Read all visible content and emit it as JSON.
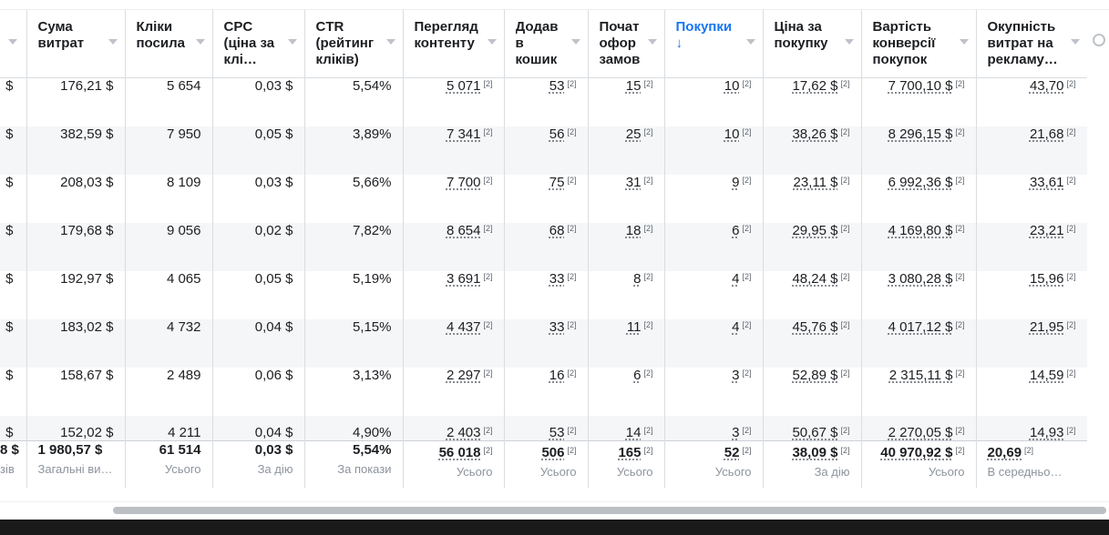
{
  "columns": [
    {
      "label": ""
    },
    {
      "label": "Сума витрат"
    },
    {
      "label": "Кліки посила"
    },
    {
      "label": "CPC (ціна за клі…"
    },
    {
      "label": "CTR (рейтинг кліків)"
    },
    {
      "label": "Перегляд контенту"
    },
    {
      "label": "Додав в кошик"
    },
    {
      "label": "Почат офор замов"
    },
    {
      "label": "Покупки ↓"
    },
    {
      "label": "Ціна за покупку"
    },
    {
      "label": "Вартість конверсії покупок"
    },
    {
      "label": "Окупність витрат на рекламу…"
    }
  ],
  "footnote_mark": "[2]",
  "rows": [
    [
      "$",
      "176,21 $",
      "5 654",
      "0,03 $",
      "5,54%",
      "5 071",
      "53",
      "15",
      "10",
      "17,62 $",
      "7 700,10 $",
      "43,70"
    ],
    [
      "$",
      "382,59 $",
      "7 950",
      "0,05 $",
      "3,89%",
      "7 341",
      "56",
      "25",
      "10",
      "38,26 $",
      "8 296,15 $",
      "21,68"
    ],
    [
      "$",
      "208,03 $",
      "8 109",
      "0,03 $",
      "5,66%",
      "7 700",
      "75",
      "31",
      "9",
      "23,11 $",
      "6 992,36 $",
      "33,61"
    ],
    [
      "$",
      "179,68 $",
      "9 056",
      "0,02 $",
      "7,82%",
      "8 654",
      "68",
      "18",
      "6",
      "29,95 $",
      "4 169,80 $",
      "23,21"
    ],
    [
      "$",
      "192,97 $",
      "4 065",
      "0,05 $",
      "5,19%",
      "3 691",
      "33",
      "8",
      "4",
      "48,24 $",
      "3 080,28 $",
      "15,96"
    ],
    [
      "$",
      "183,02 $",
      "4 732",
      "0,04 $",
      "5,15%",
      "4 437",
      "33",
      "11",
      "4",
      "45,76 $",
      "4 017,12 $",
      "21,95"
    ],
    [
      "$",
      "158,67 $",
      "2 489",
      "0,06 $",
      "3,13%",
      "2 297",
      "16",
      "6",
      "3",
      "52,89 $",
      "2 315,11 $",
      "14,59"
    ],
    [
      "$",
      "152,02 $",
      "4 211",
      "0,04 $",
      "4,90%",
      "2 403",
      "53",
      "14",
      "3",
      "50,67 $",
      "2 270,05 $",
      "14,93"
    ]
  ],
  "totals": [
    {
      "value": "8 $",
      "label": "зів"
    },
    {
      "value": "1 980,57 $",
      "label": "Загальні ви…"
    },
    {
      "value": "61 514",
      "label": "Усього"
    },
    {
      "value": "0,03 $",
      "label": "За дію"
    },
    {
      "value": "5,54%",
      "label": "За покази"
    },
    {
      "value": "56 018",
      "label": "Усього"
    },
    {
      "value": "506",
      "label": "Усього"
    },
    {
      "value": "165",
      "label": "Усього"
    },
    {
      "value": "52",
      "label": "Усього"
    },
    {
      "value": "38,09 $",
      "label": "За дію"
    },
    {
      "value": "40 970,92 $",
      "label": "Усього"
    },
    {
      "value": "20,69",
      "label": "В середньо…"
    }
  ],
  "colors": {
    "accent": "#1877f2",
    "border": "#dadde1",
    "stripe": "#f5f6f7",
    "muted": "#8d949e"
  }
}
